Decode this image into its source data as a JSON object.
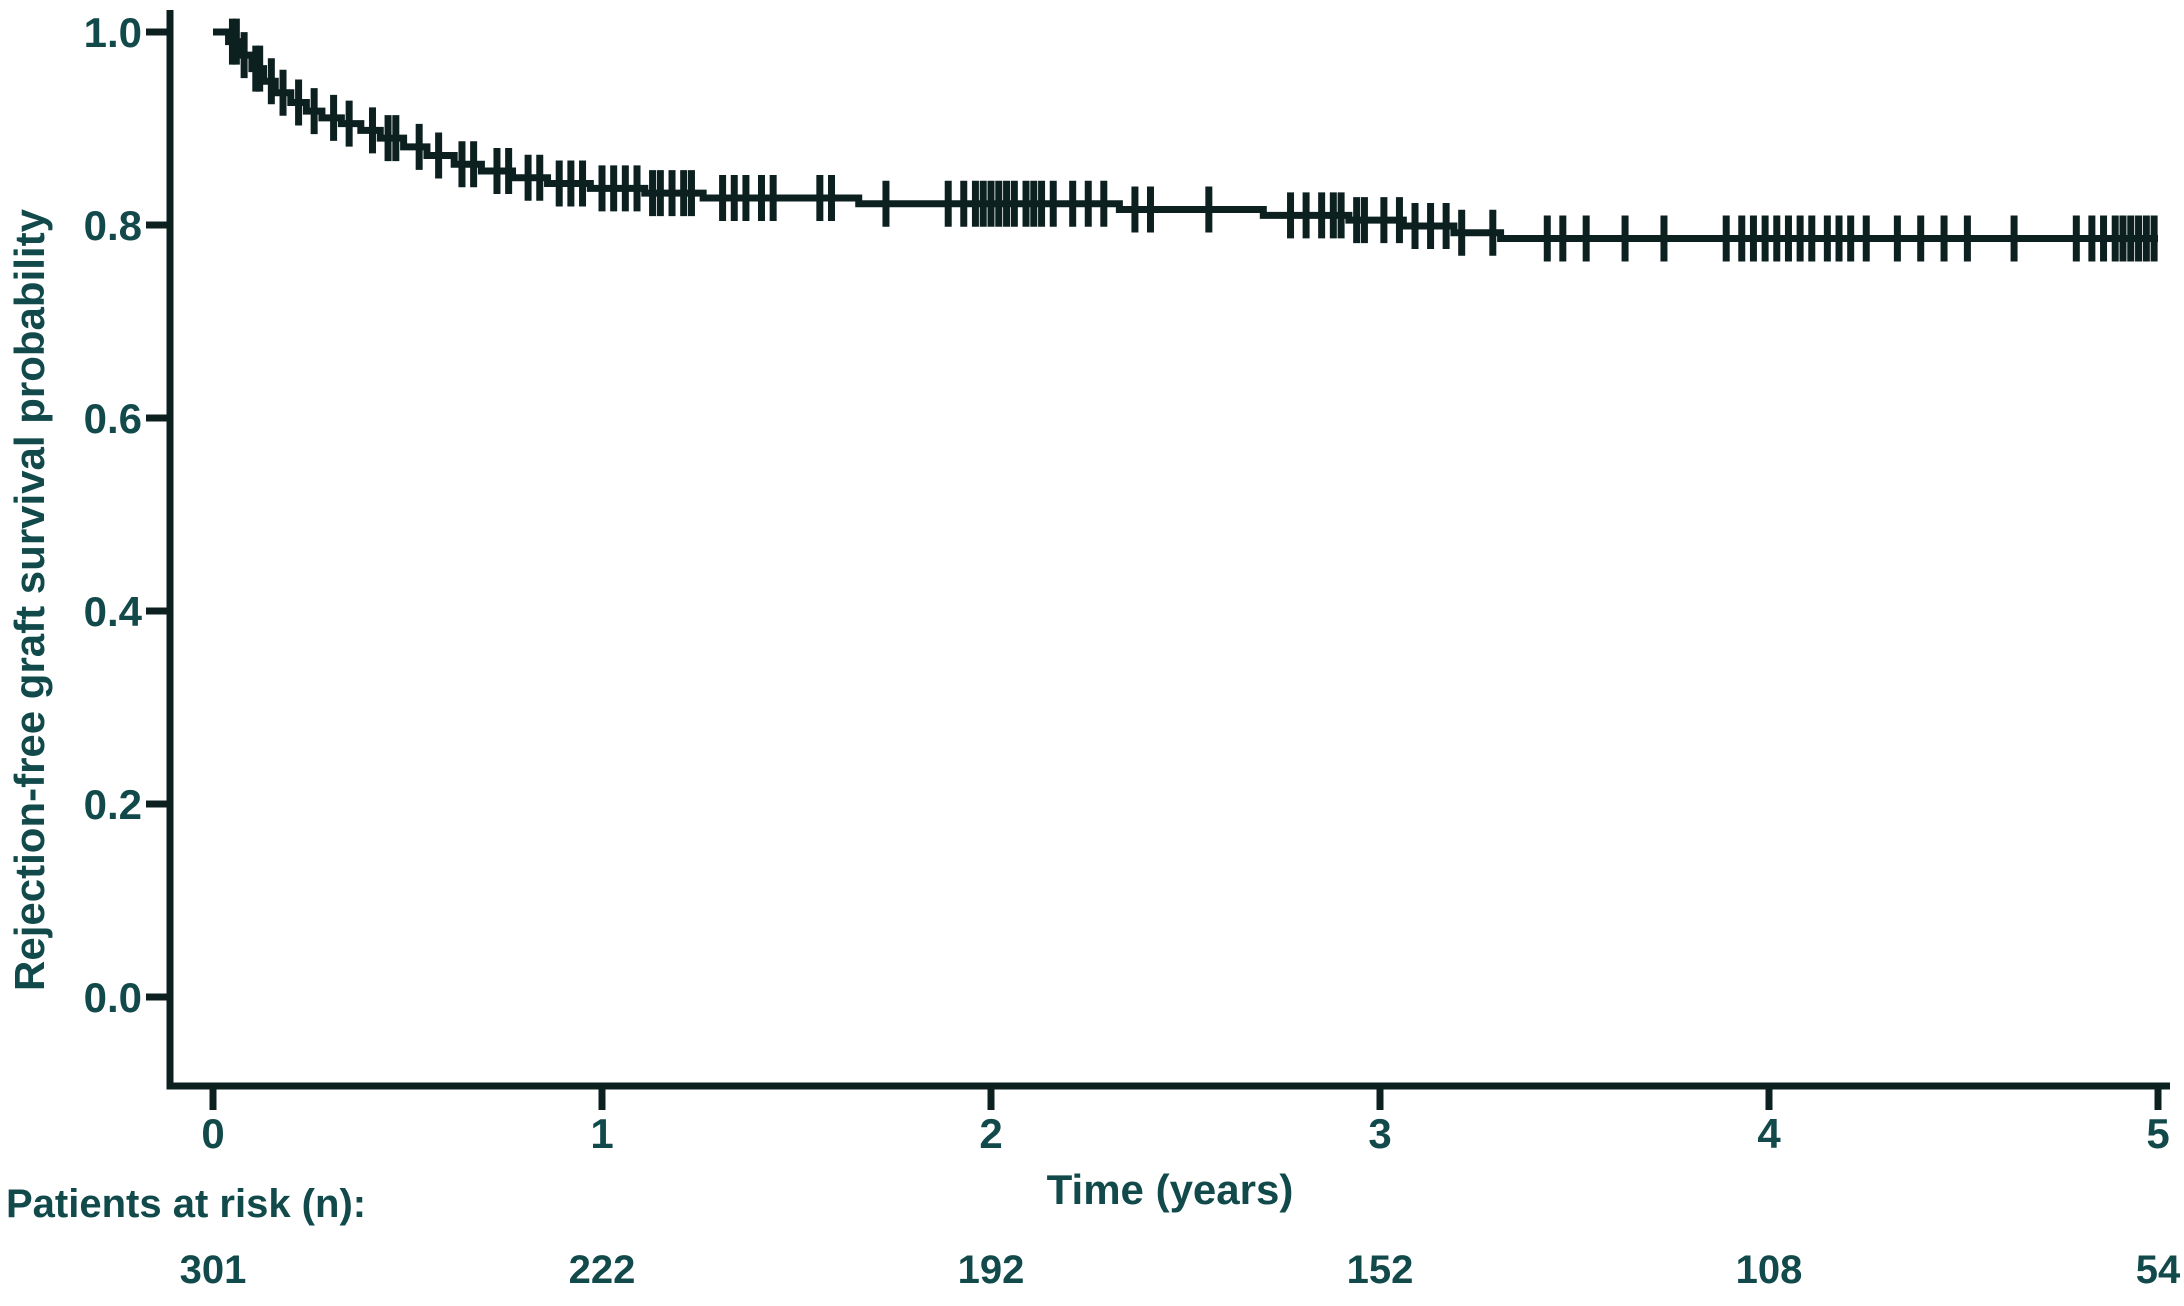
{
  "figure": {
    "background_color": "#ffffff",
    "text_color": "#124a4b",
    "line_color": "#0d2020"
  },
  "chart_data": {
    "type": "line",
    "subtype": "kaplan-meier-step",
    "title": "",
    "xlabel": "Time (years)",
    "ylabel": "Rejection-free graft survival probability",
    "xlim": [
      0,
      5
    ],
    "ylim": [
      0.0,
      1.0
    ],
    "grid": false,
    "legend_position": "none",
    "xticks": [
      {
        "v": 0,
        "label": "0"
      },
      {
        "v": 1,
        "label": "1"
      },
      {
        "v": 2,
        "label": "2"
      },
      {
        "v": 3,
        "label": "3"
      },
      {
        "v": 4,
        "label": "4"
      },
      {
        "v": 5,
        "label": "5"
      }
    ],
    "yticks": [
      {
        "v": 1.0,
        "label": "1.0"
      },
      {
        "v": 0.8,
        "label": "0.8"
      },
      {
        "v": 0.6,
        "label": "0.6"
      },
      {
        "v": 0.4,
        "label": "0.4"
      },
      {
        "v": 0.2,
        "label": "0.2"
      },
      {
        "v": 0.0,
        "label": "0.0"
      }
    ],
    "series": [
      {
        "name": "Rejection-free graft survival",
        "color": "#0d2020",
        "start": [
          0,
          1.0
        ],
        "steps": [
          [
            0.04,
            0.99
          ],
          [
            0.07,
            0.976
          ],
          [
            0.1,
            0.962
          ],
          [
            0.13,
            0.949
          ],
          [
            0.16,
            0.937
          ],
          [
            0.2,
            0.927
          ],
          [
            0.24,
            0.918
          ],
          [
            0.28,
            0.911
          ],
          [
            0.33,
            0.905
          ],
          [
            0.38,
            0.898
          ],
          [
            0.43,
            0.89
          ],
          [
            0.49,
            0.881
          ],
          [
            0.55,
            0.872
          ],
          [
            0.62,
            0.863
          ],
          [
            0.69,
            0.856
          ],
          [
            0.77,
            0.849
          ],
          [
            0.86,
            0.843
          ],
          [
            0.97,
            0.838
          ],
          [
            1.11,
            0.833
          ],
          [
            1.26,
            0.828
          ],
          [
            1.66,
            0.822
          ],
          [
            2.33,
            0.816
          ],
          [
            2.7,
            0.81
          ],
          [
            2.92,
            0.805
          ],
          [
            3.06,
            0.799
          ],
          [
            3.19,
            0.792
          ],
          [
            3.31,
            0.786
          ]
        ],
        "end_time": 5.0,
        "censor_times": [
          0.05,
          0.06,
          0.08,
          0.11,
          0.12,
          0.15,
          0.18,
          0.22,
          0.26,
          0.31,
          0.35,
          0.41,
          0.45,
          0.47,
          0.53,
          0.58,
          0.64,
          0.67,
          0.73,
          0.76,
          0.81,
          0.84,
          0.89,
          0.92,
          0.95,
          1.0,
          1.03,
          1.06,
          1.09,
          1.13,
          1.15,
          1.18,
          1.21,
          1.23,
          1.31,
          1.34,
          1.37,
          1.41,
          1.44,
          1.56,
          1.59,
          1.73,
          1.89,
          1.93,
          1.96,
          1.98,
          2.0,
          2.02,
          2.04,
          2.06,
          2.09,
          2.11,
          2.13,
          2.16,
          2.21,
          2.25,
          2.29,
          2.37,
          2.41,
          2.56,
          2.77,
          2.81,
          2.85,
          2.88,
          2.9,
          2.94,
          2.96,
          3.01,
          3.05,
          3.09,
          3.13,
          3.17,
          3.21,
          3.29,
          3.43,
          3.47,
          3.53,
          3.63,
          3.73,
          3.89,
          3.93,
          3.96,
          3.99,
          4.02,
          4.05,
          4.08,
          4.11,
          4.15,
          4.18,
          4.21,
          4.25,
          4.33,
          4.39,
          4.45,
          4.51,
          4.63,
          4.79,
          4.83,
          4.86,
          4.89,
          4.91,
          4.93,
          4.95,
          4.97,
          4.99
        ]
      }
    ],
    "at_risk_table": {
      "label": "Patients at risk (n):",
      "times": [
        0,
        1,
        2,
        3,
        4,
        5
      ],
      "counts": [
        301,
        222,
        192,
        152,
        108,
        54
      ]
    }
  }
}
